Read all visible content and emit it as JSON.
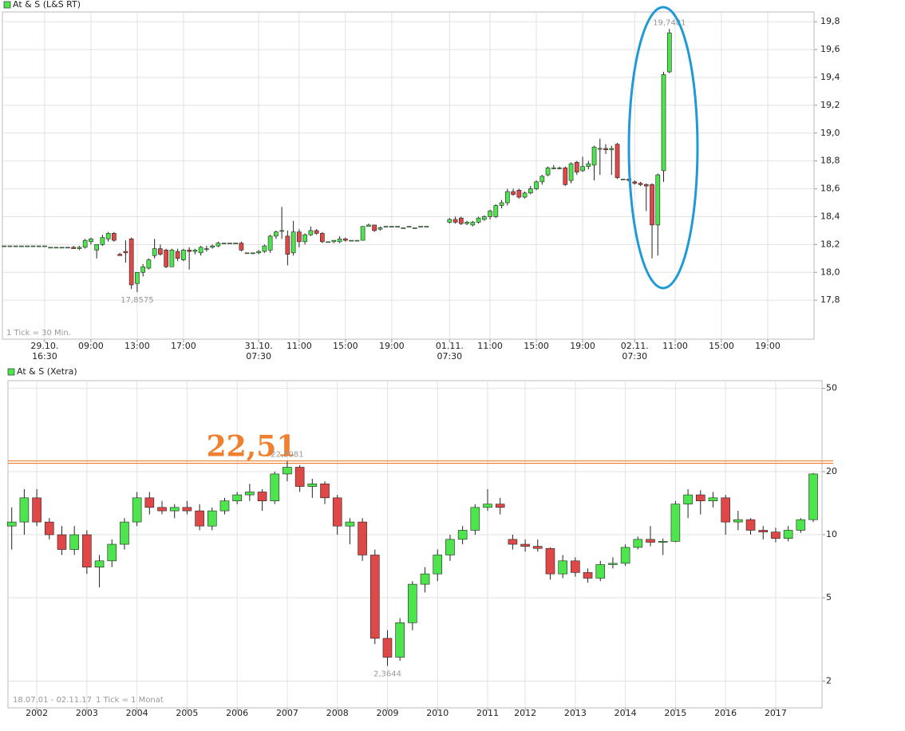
{
  "chart_data": [
    {
      "type": "candlestick",
      "series": [
        {
          "name": "At & S (L&S RT)",
          "up_color": "#4ee44e",
          "down_color": "#e04848",
          "open": [
            18.19,
            18.19,
            18.19,
            18.19,
            18.19,
            18.19,
            18.19,
            18.19,
            18.18,
            18.18,
            18.18,
            18.18,
            18.18,
            18.17,
            18.18,
            18.22,
            18.16,
            18.2,
            18.24,
            18.28,
            18.13,
            18.15,
            18.24,
            17.92,
            18.0,
            18.03,
            18.12,
            18.17,
            18.16,
            18.04,
            18.15,
            18.09,
            18.16,
            18.15,
            18.14,
            18.17,
            18.18,
            18.19,
            18.21,
            18.21,
            18.21,
            18.21,
            18.14,
            18.14,
            18.14,
            18.15,
            18.16,
            18.26,
            18.3,
            18.26,
            18.14,
            18.29,
            18.22,
            18.27,
            18.3,
            18.28,
            18.22,
            18.22,
            18.22,
            18.24,
            18.23,
            18.23,
            18.23,
            18.33,
            18.34,
            18.31,
            18.33,
            18.33,
            18.33,
            18.32,
            18.33,
            18.32,
            18.33,
            18.33,
            null,
            null,
            null,
            18.36,
            18.38,
            18.39,
            18.35,
            18.34,
            18.36,
            18.38,
            18.4,
            18.4,
            18.48,
            18.5,
            18.58,
            18.59,
            18.54,
            18.57,
            18.6,
            18.65,
            18.7,
            18.75,
            18.75,
            18.75,
            18.66,
            18.79,
            18.73,
            18.76,
            18.77,
            18.89,
            18.89,
            18.88,
            18.92,
            18.67,
            18.67,
            18.65,
            18.64,
            18.63,
            18.63,
            18.34,
            18.73,
            19.44
          ],
          "high": [
            18.19,
            18.19,
            18.19,
            18.19,
            18.19,
            18.19,
            18.19,
            18.19,
            18.18,
            18.18,
            18.18,
            18.18,
            18.19,
            18.19,
            18.24,
            18.25,
            18.2,
            18.27,
            18.29,
            18.29,
            18.14,
            18.23,
            18.25,
            18.0,
            18.06,
            18.1,
            18.24,
            18.2,
            18.17,
            18.17,
            18.17,
            18.17,
            18.18,
            18.17,
            18.19,
            18.19,
            18.2,
            18.22,
            18.21,
            18.21,
            18.21,
            18.22,
            18.14,
            18.14,
            18.16,
            18.2,
            18.27,
            18.3,
            18.47,
            18.3,
            18.37,
            18.31,
            18.28,
            18.33,
            18.31,
            18.29,
            18.22,
            18.23,
            18.26,
            18.25,
            18.23,
            18.23,
            18.33,
            18.35,
            18.34,
            18.33,
            18.33,
            18.33,
            18.33,
            18.32,
            18.33,
            18.32,
            18.33,
            18.33,
            null,
            null,
            null,
            18.39,
            18.4,
            18.4,
            18.37,
            18.37,
            18.4,
            18.41,
            18.45,
            18.49,
            18.52,
            18.6,
            18.6,
            18.6,
            18.58,
            18.62,
            18.66,
            18.7,
            18.76,
            18.77,
            18.76,
            18.76,
            18.79,
            18.8,
            18.83,
            18.8,
            18.91,
            18.96,
            18.92,
            18.91,
            18.93,
            18.67,
            18.67,
            18.66,
            18.65,
            18.64,
            18.64,
            18.71,
            19.44,
            19.7481
          ],
          "low": [
            18.19,
            18.19,
            18.19,
            18.19,
            18.19,
            18.19,
            18.19,
            18.19,
            18.18,
            18.18,
            18.18,
            18.18,
            18.17,
            18.16,
            18.17,
            18.2,
            18.1,
            18.19,
            18.22,
            18.22,
            18.12,
            18.07,
            17.88,
            17.8575,
            17.97,
            18.02,
            18.1,
            18.12,
            18.03,
            18.04,
            18.08,
            18.08,
            18.02,
            18.13,
            18.12,
            18.15,
            18.17,
            18.18,
            18.21,
            18.21,
            18.21,
            18.15,
            18.14,
            18.13,
            18.13,
            18.14,
            18.14,
            18.24,
            18.24,
            18.05,
            18.12,
            18.18,
            18.2,
            18.26,
            18.27,
            18.21,
            18.22,
            18.21,
            18.21,
            18.22,
            18.23,
            18.23,
            18.23,
            18.33,
            18.29,
            18.3,
            18.33,
            18.33,
            18.33,
            18.32,
            18.33,
            18.32,
            18.33,
            18.33,
            null,
            null,
            null,
            18.35,
            18.35,
            18.34,
            18.34,
            18.33,
            18.35,
            18.37,
            18.38,
            18.39,
            18.46,
            18.48,
            18.55,
            18.53,
            18.53,
            18.56,
            18.59,
            18.63,
            18.69,
            18.74,
            18.74,
            18.62,
            18.64,
            18.7,
            18.72,
            18.74,
            18.66,
            18.7,
            18.85,
            18.7,
            18.67,
            18.67,
            18.65,
            18.63,
            18.62,
            18.44,
            18.1,
            18.12,
            18.65,
            19.43
          ],
          "close": [
            18.19,
            18.19,
            18.19,
            18.19,
            18.19,
            18.19,
            18.19,
            18.19,
            18.18,
            18.18,
            18.18,
            18.18,
            18.17,
            18.18,
            18.23,
            18.24,
            18.2,
            18.25,
            18.28,
            18.23,
            18.12,
            18.14,
            17.91,
            18.0,
            18.04,
            18.09,
            18.17,
            18.13,
            18.04,
            18.16,
            18.1,
            18.16,
            18.15,
            18.16,
            18.18,
            18.17,
            18.19,
            18.21,
            18.21,
            18.21,
            18.21,
            18.16,
            18.14,
            18.14,
            18.15,
            18.19,
            18.26,
            18.29,
            18.3,
            18.13,
            18.29,
            18.22,
            18.27,
            18.3,
            18.28,
            18.22,
            18.22,
            18.23,
            18.24,
            18.23,
            18.23,
            18.23,
            18.33,
            18.34,
            18.3,
            18.32,
            18.33,
            18.33,
            18.33,
            18.32,
            18.33,
            18.32,
            18.33,
            18.33,
            null,
            null,
            null,
            18.38,
            18.36,
            18.35,
            18.36,
            18.36,
            18.39,
            18.4,
            18.44,
            18.48,
            18.5,
            18.58,
            18.56,
            18.54,
            18.57,
            18.6,
            18.65,
            18.69,
            18.75,
            18.75,
            18.75,
            18.63,
            18.78,
            18.72,
            18.76,
            18.78,
            18.9,
            18.89,
            18.88,
            18.89,
            18.68,
            18.67,
            18.66,
            18.64,
            18.63,
            18.62,
            18.34,
            18.7,
            19.42,
            19.72
          ]
        }
      ],
      "xlim": [
        -0.3,
        140
      ],
      "xticks": [
        {
          "value": 7,
          "label": "29.10.\n16:30"
        },
        {
          "value": 15,
          "label": "09:00"
        },
        {
          "value": 23,
          "label": "13:00"
        },
        {
          "value": 31,
          "label": "17:00"
        },
        {
          "value": 44,
          "label": "31.10.\n07:30"
        },
        {
          "value": 51,
          "label": "11:00"
        },
        {
          "value": 59,
          "label": "15:00"
        },
        {
          "value": 67,
          "label": "19:00"
        },
        {
          "value": 77,
          "label": "01.11.\n07:30"
        },
        {
          "value": 84,
          "label": "11:00"
        },
        {
          "value": 92,
          "label": "15:00"
        },
        {
          "value": 100,
          "label": "19:00"
        },
        {
          "value": 109,
          "label": "02.11.\n07:30"
        },
        {
          "value": 116,
          "label": "11:00"
        },
        {
          "value": 124,
          "label": "15:00"
        },
        {
          "value": 132,
          "label": "19:00"
        }
      ],
      "ylim": [
        17.52,
        19.87
      ],
      "yticks": [
        {
          "value": 17.8,
          "label": "17,8"
        },
        {
          "value": 18.0,
          "label": "18,0"
        },
        {
          "value": 18.2,
          "label": "18,2"
        },
        {
          "value": 18.4,
          "label": "18,4"
        },
        {
          "value": 18.6,
          "label": "18,6"
        },
        {
          "value": 18.8,
          "label": "18,8"
        },
        {
          "value": 19.0,
          "label": "19,0"
        },
        {
          "value": 19.2,
          "label": "19,2"
        },
        {
          "value": 19.4,
          "label": "19,4"
        },
        {
          "value": 19.6,
          "label": "19,6"
        },
        {
          "value": 19.8,
          "label": "19,8"
        }
      ],
      "log_scale": false,
      "grid": true,
      "max_label": "19,7481",
      "min_label": "17,8575",
      "notes": [
        "1 Tick = 30 Min."
      ]
    },
    {
      "type": "candlestick",
      "series": [
        {
          "name": "At & S (Xetra)",
          "up_color": "#4ee44e",
          "down_color": "#e04848",
          "open": [
            11,
            11.5,
            15,
            11.5,
            10,
            8.5,
            10,
            7,
            7.5,
            9,
            11.5,
            15,
            13.5,
            13,
            13.5,
            13,
            11,
            13,
            14.5,
            15.5,
            16,
            14.5,
            19.5,
            21,
            17,
            17.5,
            15,
            11,
            11.5,
            8,
            3.2,
            2.6,
            3.8,
            5.8,
            6.5,
            8,
            9.5,
            10.5,
            13.5,
            14,
            9.5,
            9,
            8.8,
            8.6,
            6.5,
            7.5,
            6.6,
            6.2,
            7.2,
            7.3,
            8.7,
            9.5,
            9.2,
            9.3,
            14,
            15.5,
            14.5,
            15,
            11.5,
            11.8,
            10.5,
            10.3,
            9.6,
            10.5,
            11.8
          ],
          "high": [
            13.5,
            16.5,
            16.5,
            12,
            11,
            11,
            10.5,
            8,
            9.5,
            12,
            16,
            16,
            14.5,
            14,
            14.5,
            14,
            13.5,
            15,
            16,
            17.5,
            16.5,
            20,
            22.5081,
            21.5,
            18.5,
            18,
            15.5,
            12,
            12,
            8.5,
            3.5,
            4,
            6,
            7,
            8.5,
            10,
            11,
            14,
            16.5,
            15,
            10,
            9.5,
            9.5,
            8.7,
            8,
            7.8,
            6.9,
            7.5,
            7.8,
            9,
            9.8,
            11,
            9.6,
            14.5,
            16.5,
            16.3,
            16,
            15.5,
            13,
            12,
            11,
            10.8,
            11,
            12,
            19.7
          ],
          "low": [
            8.5,
            10,
            11,
            9.5,
            8,
            8,
            6.5,
            5.6,
            7,
            8.5,
            11,
            12.5,
            12.5,
            12,
            12.5,
            10.5,
            10.5,
            12.5,
            14,
            14.5,
            13,
            14,
            18,
            16,
            15,
            14,
            10,
            9,
            7.5,
            3,
            2.3644,
            2.5,
            3.5,
            5.3,
            6,
            7.5,
            9,
            10,
            13,
            12.5,
            8.5,
            8.3,
            8.3,
            6.1,
            6.2,
            6.3,
            5.9,
            6,
            6.9,
            7.1,
            8.5,
            8.8,
            8,
            9.2,
            12,
            12.5,
            13.5,
            10,
            10.5,
            10,
            9.5,
            9.2,
            9.3,
            10.2,
            11.5
          ],
          "close": [
            11.5,
            15,
            11.5,
            10,
            8.5,
            10,
            7,
            7.5,
            9,
            11.5,
            15,
            13.5,
            13,
            13.5,
            13,
            11,
            13,
            14.5,
            15.5,
            16,
            14.5,
            19.5,
            21,
            17,
            17.5,
            15,
            11,
            11.5,
            8,
            3.2,
            2.6,
            3.8,
            5.8,
            6.5,
            8,
            9.5,
            10.5,
            13.5,
            14,
            13.5,
            9,
            8.8,
            8.6,
            6.5,
            7.5,
            6.6,
            6.2,
            7.2,
            7.3,
            8.7,
            9.5,
            9.2,
            9.3,
            14,
            15.5,
            14.5,
            15,
            11.5,
            11.8,
            10.5,
            10.3,
            9.6,
            10.5,
            11.8,
            19.5
          ]
        }
      ],
      "xlim": [
        -0.3,
        64.7
      ],
      "xticks": [
        {
          "value": 2,
          "label": "2002"
        },
        {
          "value": 6,
          "label": "2003"
        },
        {
          "value": 10,
          "label": "2004"
        },
        {
          "value": 14,
          "label": "2005"
        },
        {
          "value": 18,
          "label": "2006"
        },
        {
          "value": 22,
          "label": "2007"
        },
        {
          "value": 26,
          "label": "2008"
        },
        {
          "value": 30,
          "label": "2009"
        },
        {
          "value": 34,
          "label": "2010"
        },
        {
          "value": 38,
          "label": "2011"
        },
        {
          "value": 41,
          "label": "2012"
        },
        {
          "value": 45,
          "label": "2013"
        },
        {
          "value": 49,
          "label": "2014"
        },
        {
          "value": 53,
          "label": "2015"
        },
        {
          "value": 57,
          "label": "2016"
        },
        {
          "value": 61,
          "label": "2017"
        }
      ],
      "ylim": [
        1.49,
        54.4
      ],
      "yticks": [
        2,
        5,
        10,
        20,
        50
      ],
      "log_scale": true,
      "grid": true,
      "max_label": "22,5081",
      "min_label": "2,3644",
      "reference_line": {
        "value": 22.51,
        "label": "22,51",
        "color": "#f08030"
      },
      "notes": [
        "18.07.01 - 02.11.17",
        "1 Tick = 1 Monat"
      ]
    }
  ]
}
